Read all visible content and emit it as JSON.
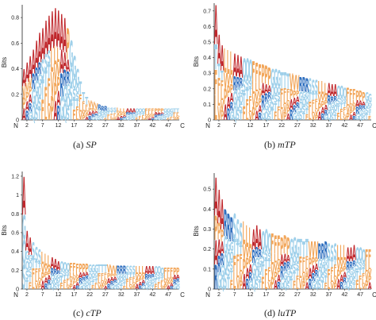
{
  "colors": {
    "hydrophobic": "#f2a65a",
    "acidic_basic": "#c0282d",
    "polar": "#9fd0ea",
    "blue": "#2f6fbf",
    "axis": "#222222"
  },
  "chart_data": [
    {
      "type": "sequence-logo",
      "panel": "(a)",
      "caption_prefix": "(a) ",
      "caption_name": "SP",
      "ylabel": "Bits",
      "ylim": [
        0,
        0.9
      ],
      "yticks": [
        "0",
        "0.2",
        "0.4",
        "0.6",
        "0.8"
      ],
      "ytick_values": [
        0,
        0.2,
        0.4,
        0.6,
        0.8
      ],
      "xticks": [
        "2",
        "7",
        "12",
        "17",
        "22",
        "27",
        "32",
        "37",
        "42",
        "47"
      ],
      "n_label": "N",
      "c_label": "C",
      "positions": 50,
      "column_heights": [
        0.4,
        0.45,
        0.5,
        0.55,
        0.62,
        0.68,
        0.72,
        0.78,
        0.82,
        0.85,
        0.88,
        0.86,
        0.83,
        0.8,
        0.72,
        0.62,
        0.5,
        0.4,
        0.3,
        0.22,
        0.18,
        0.15,
        0.14,
        0.13,
        0.12,
        0.11,
        0.11,
        0.1,
        0.1,
        0.1,
        0.1,
        0.09,
        0.09,
        0.09,
        0.09,
        0.09,
        0.09,
        0.09,
        0.09,
        0.09,
        0.09,
        0.09,
        0.09,
        0.09,
        0.09,
        0.09,
        0.09,
        0.09,
        0.09,
        0.09
      ]
    },
    {
      "type": "sequence-logo",
      "panel": "(b)",
      "caption_prefix": "(b) ",
      "caption_name": "mTP",
      "ylabel": "Bits",
      "ylim": [
        0,
        0.75
      ],
      "yticks": [
        "0",
        "0.1",
        "0.2",
        "0.3",
        "0.4",
        "0.5",
        "0.6",
        "0.7"
      ],
      "ytick_values": [
        0,
        0.1,
        0.2,
        0.3,
        0.4,
        0.5,
        0.6,
        0.7
      ],
      "xticks": [
        "2",
        "7",
        "12",
        "17",
        "22",
        "27",
        "32",
        "37",
        "42",
        "47"
      ],
      "n_label": "N",
      "c_label": "C",
      "positions": 50,
      "column_heights": [
        0.74,
        0.55,
        0.48,
        0.46,
        0.45,
        0.44,
        0.43,
        0.42,
        0.41,
        0.4,
        0.4,
        0.39,
        0.38,
        0.37,
        0.36,
        0.36,
        0.35,
        0.34,
        0.33,
        0.33,
        0.32,
        0.31,
        0.31,
        0.3,
        0.3,
        0.29,
        0.29,
        0.28,
        0.28,
        0.27,
        0.27,
        0.26,
        0.26,
        0.25,
        0.25,
        0.24,
        0.24,
        0.23,
        0.23,
        0.22,
        0.22,
        0.21,
        0.21,
        0.2,
        0.2,
        0.19,
        0.19,
        0.18,
        0.18,
        0.17
      ]
    },
    {
      "type": "sequence-logo",
      "panel": "(c)",
      "caption_prefix": "(c) ",
      "caption_name": "cTP",
      "ylabel": "Bits",
      "ylim": [
        0,
        1.25
      ],
      "yticks": [
        "0",
        "0.2",
        "0.4",
        "0.6",
        "0.8",
        "1",
        "1.2"
      ],
      "ytick_values": [
        0,
        0.2,
        0.4,
        0.6,
        0.8,
        1.0,
        1.2
      ],
      "xticks": [
        "2",
        "7",
        "12",
        "17",
        "22",
        "27",
        "32",
        "37",
        "42",
        "47"
      ],
      "n_label": "N",
      "c_label": "C",
      "positions": 50,
      "column_heights": [
        1.2,
        0.62,
        0.55,
        0.5,
        0.45,
        0.42,
        0.4,
        0.38,
        0.36,
        0.34,
        0.32,
        0.3,
        0.3,
        0.29,
        0.28,
        0.28,
        0.28,
        0.27,
        0.27,
        0.27,
        0.27,
        0.26,
        0.26,
        0.26,
        0.26,
        0.26,
        0.26,
        0.26,
        0.25,
        0.25,
        0.25,
        0.25,
        0.25,
        0.25,
        0.25,
        0.25,
        0.24,
        0.24,
        0.24,
        0.24,
        0.24,
        0.24,
        0.24,
        0.24,
        0.23,
        0.23,
        0.23,
        0.23,
        0.23,
        0.23
      ]
    },
    {
      "type": "sequence-logo",
      "panel": "(d)",
      "caption_prefix": "(d) ",
      "caption_name": "luTP",
      "ylabel": "Bits",
      "ylim": [
        0,
        0.58
      ],
      "yticks": [
        "0",
        "0.1",
        "0.2",
        "0.3",
        "0.4",
        "0.5"
      ],
      "ytick_values": [
        0,
        0.1,
        0.2,
        0.3,
        0.4,
        0.5
      ],
      "xticks": [
        "2",
        "7",
        "12",
        "17",
        "22",
        "27",
        "32",
        "37",
        "42",
        "47"
      ],
      "n_label": "N",
      "c_label": "C",
      "positions": 50,
      "column_heights": [
        0.56,
        0.5,
        0.45,
        0.4,
        0.38,
        0.36,
        0.38,
        0.35,
        0.33,
        0.34,
        0.32,
        0.31,
        0.3,
        0.32,
        0.3,
        0.29,
        0.3,
        0.28,
        0.28,
        0.27,
        0.27,
        0.26,
        0.27,
        0.26,
        0.25,
        0.26,
        0.25,
        0.25,
        0.24,
        0.25,
        0.24,
        0.24,
        0.24,
        0.23,
        0.23,
        0.24,
        0.23,
        0.22,
        0.23,
        0.22,
        0.22,
        0.22,
        0.21,
        0.21,
        0.22,
        0.21,
        0.21,
        0.2,
        0.2,
        0.2
      ]
    }
  ]
}
